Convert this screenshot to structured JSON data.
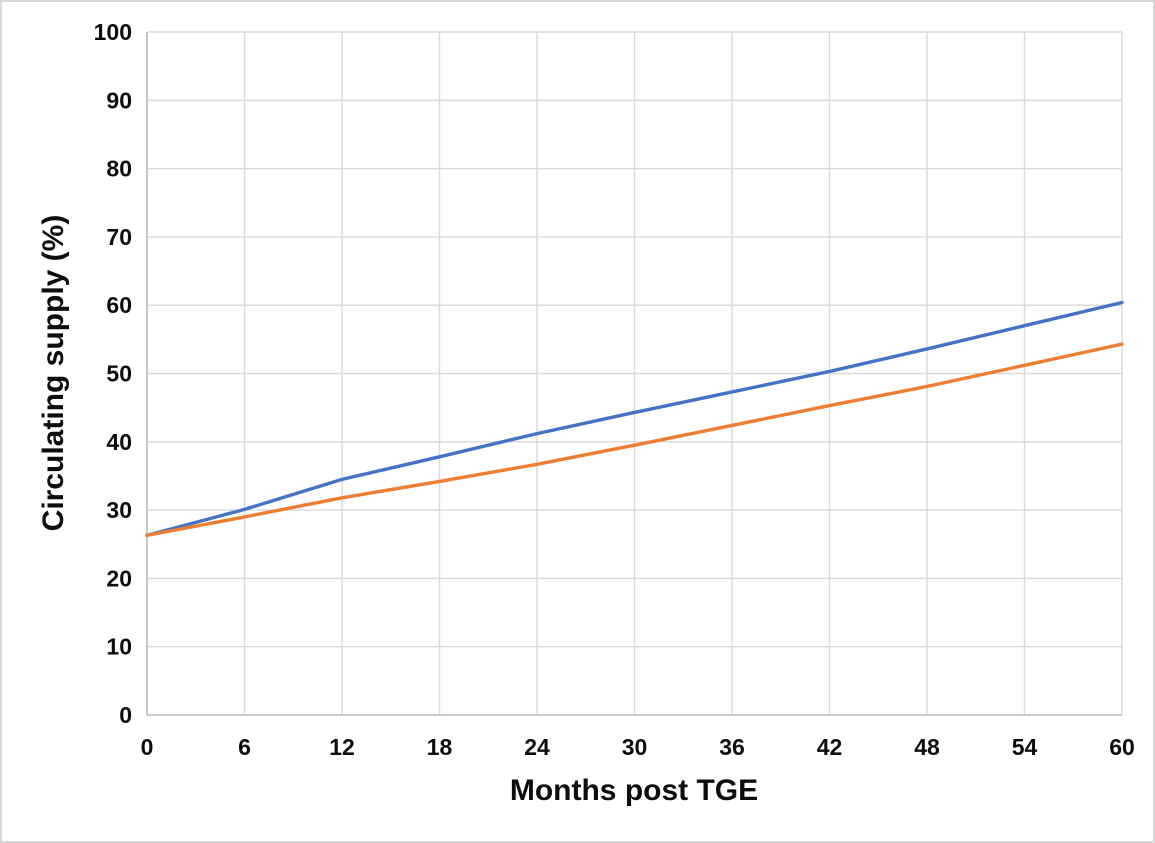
{
  "chart_data": {
    "type": "line",
    "xlabel": "Months post TGE",
    "ylabel": "Circulating supply (%)",
    "xlim": [
      0,
      60
    ],
    "ylim": [
      0,
      100
    ],
    "x_ticks": [
      0,
      6,
      12,
      18,
      24,
      30,
      36,
      42,
      48,
      54,
      60
    ],
    "y_ticks": [
      0,
      10,
      20,
      30,
      40,
      50,
      60,
      70,
      80,
      90,
      100
    ],
    "grid": true,
    "legend": "none",
    "x": [
      0,
      6,
      12,
      18,
      24,
      30,
      36,
      42,
      48,
      54,
      60
    ],
    "series": [
      {
        "name": "series-blue",
        "color": "#4472C4",
        "values": [
          26.3,
          30.1,
          34.5,
          37.8,
          41.2,
          44.3,
          47.3,
          50.3,
          53.6,
          57.0,
          60.4
        ]
      },
      {
        "name": "series-orange",
        "color": "#ED7D31",
        "values": [
          26.3,
          29.0,
          31.8,
          34.2,
          36.7,
          39.5,
          42.4,
          45.3,
          48.1,
          51.2,
          54.3
        ]
      }
    ],
    "colors": {
      "gridline": "#D9D9D9",
      "axis_line": "#BFBFBF",
      "tick_text": "#0d0d0d",
      "background": "#FFFFFF"
    }
  }
}
